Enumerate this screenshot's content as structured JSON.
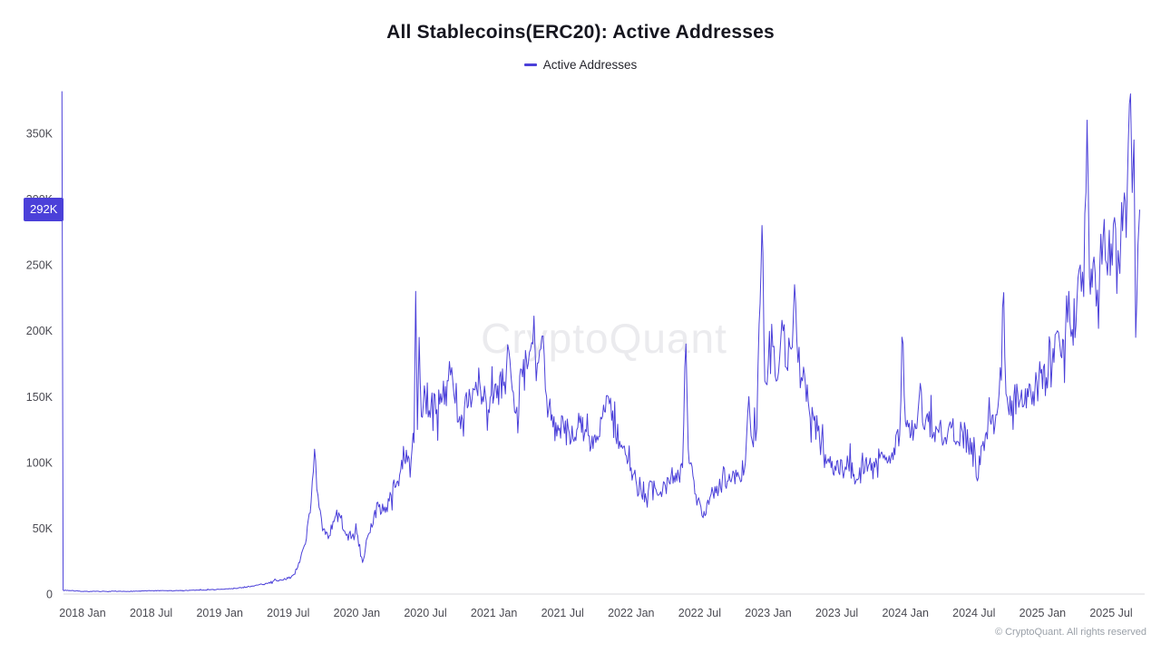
{
  "title": "All Stablecoins(ERC20): Active Addresses",
  "legend": {
    "label": "Active Addresses"
  },
  "watermark": "CryptoQuant",
  "footer": "© CryptoQuant. All rights reserved",
  "last_value_badge": {
    "label": "292K",
    "value_k": 292
  },
  "colors": {
    "line": "#4B40D9",
    "badge_bg": "#4B40D9",
    "badge_text": "#ffffff",
    "axis_text": "#4a4a52",
    "axis_line": "#d9d9de",
    "title_text": "#16161f",
    "watermark": "#ebebee"
  },
  "chart_data": {
    "type": "line",
    "title": "All Stablecoins(ERC20): Active Addresses",
    "series_name": "Active Addresses",
    "x_unit": "months_since_2018_01",
    "x_tick_months": [
      0,
      6,
      12,
      18,
      24,
      30,
      36,
      42,
      48,
      54,
      60,
      66,
      72,
      78,
      84,
      90
    ],
    "x_tick_labels": [
      "2018 Jan",
      "2018 Jul",
      "2019 Jan",
      "2019 Jul",
      "2020 Jan",
      "2020 Jul",
      "2021 Jan",
      "2021 Jul",
      "2022 Jan",
      "2022 Jul",
      "2023 Jan",
      "2023 Jul",
      "2024 Jan",
      "2024 Jul",
      "2025 Jan",
      "2025 Jul"
    ],
    "y_ticks_k": [
      0,
      50,
      100,
      150,
      200,
      250,
      300,
      350
    ],
    "y_tick_labels": [
      "0",
      "50K",
      "100K",
      "150K",
      "200K",
      "250K",
      "300K",
      "350K"
    ],
    "ylim_k": [
      0,
      383
    ],
    "last_value_k": 292,
    "noise_fraction": 0.09,
    "points_month_valueK": [
      [
        -1.8,
        382
      ],
      [
        -1.7,
        3
      ],
      [
        0,
        2
      ],
      [
        2,
        2
      ],
      [
        4,
        2
      ],
      [
        6,
        2.5
      ],
      [
        8,
        2.5
      ],
      [
        10,
        3
      ],
      [
        12,
        3.5
      ],
      [
        13,
        4
      ],
      [
        14,
        5
      ],
      [
        15,
        6
      ],
      [
        16,
        8
      ],
      [
        17,
        10
      ],
      [
        18,
        12
      ],
      [
        18.5,
        15
      ],
      [
        19,
        24
      ],
      [
        19.5,
        38
      ],
      [
        20,
        70
      ],
      [
        20.3,
        110
      ],
      [
        20.6,
        75
      ],
      [
        21,
        48
      ],
      [
        21.5,
        42
      ],
      [
        22,
        55
      ],
      [
        22.5,
        60
      ],
      [
        23,
        46
      ],
      [
        23.5,
        42
      ],
      [
        24,
        46
      ],
      [
        24.5,
        24
      ],
      [
        25,
        45
      ],
      [
        25.5,
        60
      ],
      [
        26,
        68
      ],
      [
        26.5,
        62
      ],
      [
        27,
        75
      ],
      [
        27.5,
        85
      ],
      [
        28,
        95
      ],
      [
        28.5,
        105
      ],
      [
        29,
        115
      ],
      [
        29.15,
        230
      ],
      [
        29.3,
        125
      ],
      [
        29.45,
        195
      ],
      [
        29.65,
        135
      ],
      [
        30,
        150
      ],
      [
        30.5,
        145
      ],
      [
        31,
        140
      ],
      [
        31.5,
        150
      ],
      [
        32,
        162
      ],
      [
        32.3,
        172
      ],
      [
        32.6,
        145
      ],
      [
        33,
        135
      ],
      [
        33.5,
        150
      ],
      [
        34,
        142
      ],
      [
        34.5,
        155
      ],
      [
        35,
        150
      ],
      [
        35.5,
        140
      ],
      [
        36,
        150
      ],
      [
        36.5,
        165
      ],
      [
        37,
        152
      ],
      [
        37.3,
        185
      ],
      [
        37.6,
        155
      ],
      [
        38,
        142
      ],
      [
        38.5,
        165
      ],
      [
        39,
        175
      ],
      [
        39.4,
        190
      ],
      [
        39.7,
        162
      ],
      [
        40,
        185
      ],
      [
        40.3,
        196
      ],
      [
        40.6,
        150
      ],
      [
        41,
        132
      ],
      [
        41.5,
        120
      ],
      [
        42,
        135
      ],
      [
        42.5,
        126
      ],
      [
        43,
        116
      ],
      [
        43.5,
        130
      ],
      [
        44,
        125
      ],
      [
        44.5,
        112
      ],
      [
        45,
        120
      ],
      [
        45.5,
        135
      ],
      [
        46,
        150
      ],
      [
        46.3,
        132
      ],
      [
        47,
        116
      ],
      [
        47.5,
        106
      ],
      [
        48,
        96
      ],
      [
        48.5,
        82
      ],
      [
        49,
        72
      ],
      [
        49.5,
        78
      ],
      [
        50,
        86
      ],
      [
        50.5,
        76
      ],
      [
        51,
        82
      ],
      [
        51.5,
        90
      ],
      [
        52,
        86
      ],
      [
        52.5,
        96
      ],
      [
        52.8,
        190
      ],
      [
        53,
        110
      ],
      [
        53.5,
        86
      ],
      [
        54,
        70
      ],
      [
        54.3,
        58
      ],
      [
        54.8,
        68
      ],
      [
        55,
        76
      ],
      [
        55.5,
        82
      ],
      [
        56,
        90
      ],
      [
        56.5,
        86
      ],
      [
        57,
        92
      ],
      [
        57.5,
        88
      ],
      [
        58,
        100
      ],
      [
        58.3,
        150
      ],
      [
        58.6,
        116
      ],
      [
        59,
        126
      ],
      [
        59.2,
        205
      ],
      [
        59.45,
        280
      ],
      [
        59.7,
        162
      ],
      [
        60,
        175
      ],
      [
        60.3,
        205
      ],
      [
        60.6,
        166
      ],
      [
        61,
        180
      ],
      [
        61.3,
        200
      ],
      [
        61.6,
        172
      ],
      [
        62,
        186
      ],
      [
        62.3,
        235
      ],
      [
        62.6,
        176
      ],
      [
        63,
        162
      ],
      [
        63.5,
        146
      ],
      [
        64,
        132
      ],
      [
        64.5,
        116
      ],
      [
        65,
        106
      ],
      [
        65.5,
        96
      ],
      [
        66,
        101
      ],
      [
        66.5,
        93
      ],
      [
        67,
        99
      ],
      [
        67.5,
        91
      ],
      [
        68,
        96
      ],
      [
        68.5,
        101
      ],
      [
        69,
        94
      ],
      [
        69.5,
        99
      ],
      [
        70,
        106
      ],
      [
        70.5,
        101
      ],
      [
        71,
        111
      ],
      [
        71.5,
        121
      ],
      [
        71.8,
        190
      ],
      [
        72,
        131
      ],
      [
        72.5,
        121
      ],
      [
        73,
        126
      ],
      [
        73.3,
        160
      ],
      [
        73.6,
        126
      ],
      [
        74,
        131
      ],
      [
        74.5,
        123
      ],
      [
        75,
        129
      ],
      [
        75.5,
        119
      ],
      [
        76,
        126
      ],
      [
        76.5,
        116
      ],
      [
        77,
        123
      ],
      [
        77.5,
        113
      ],
      [
        78,
        119
      ],
      [
        78.3,
        86
      ],
      [
        78.8,
        116
      ],
      [
        79,
        121
      ],
      [
        79.5,
        129
      ],
      [
        80,
        136
      ],
      [
        80.3,
        172
      ],
      [
        80.6,
        229
      ],
      [
        80.8,
        152
      ],
      [
        81,
        141
      ],
      [
        81.5,
        151
      ],
      [
        82,
        146
      ],
      [
        82.5,
        156
      ],
      [
        83,
        151
      ],
      [
        83.5,
        161
      ],
      [
        84,
        156
      ],
      [
        84.5,
        169
      ],
      [
        85,
        176
      ],
      [
        85.3,
        200
      ],
      [
        85.6,
        181
      ],
      [
        86,
        196
      ],
      [
        86.3,
        230
      ],
      [
        86.6,
        201
      ],
      [
        87,
        221
      ],
      [
        87.3,
        250
      ],
      [
        87.6,
        226
      ],
      [
        87.9,
        360
      ],
      [
        88.1,
        241
      ],
      [
        88.5,
        256
      ],
      [
        88.8,
        231
      ],
      [
        89,
        246
      ],
      [
        89.3,
        271
      ],
      [
        89.6,
        251
      ],
      [
        90,
        266
      ],
      [
        90.3,
        286
      ],
      [
        90.6,
        261
      ],
      [
        91,
        276
      ],
      [
        91.4,
        301
      ],
      [
        91.7,
        380
      ],
      [
        91.85,
        305
      ],
      [
        92.0,
        345
      ],
      [
        92.15,
        195
      ],
      [
        92.35,
        265
      ],
      [
        92.5,
        292
      ]
    ]
  }
}
